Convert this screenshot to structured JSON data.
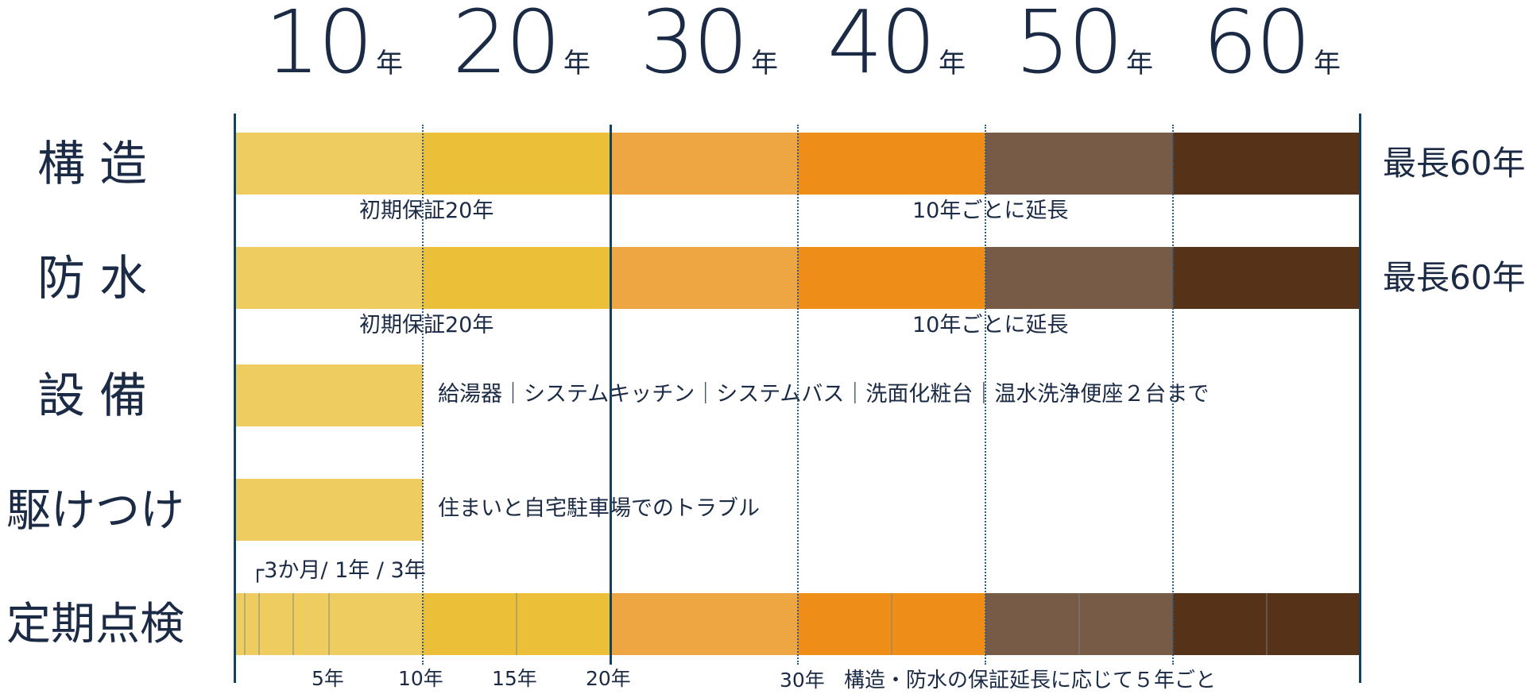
{
  "header": {
    "years": [
      {
        "num": "10",
        "unit": "年"
      },
      {
        "num": "20",
        "unit": "年"
      },
      {
        "num": "30",
        "unit": "年"
      },
      {
        "num": "40",
        "unit": "年"
      },
      {
        "num": "50",
        "unit": "年"
      },
      {
        "num": "60",
        "unit": "年"
      }
    ]
  },
  "rows": {
    "structure": {
      "label": "構造",
      "max": "最長60年",
      "note_initial": "初期保証20年",
      "note_extend": "10年ごとに延長"
    },
    "waterproof": {
      "label": "防水",
      "max": "最長60年",
      "note_initial": "初期保証20年",
      "note_extend": "10年ごとに延長"
    },
    "equipment": {
      "label": "設備",
      "note": "給湯器｜システムキッチン｜システムバス｜洗面化粧台｜温水洗浄便座２台まで"
    },
    "rush": {
      "label": "駆けつけ",
      "note": "住まいと自宅駐車場でのトラブル"
    },
    "inspection": {
      "label": "定期点検",
      "early_note": "┌3か月/ 1年 / 3年",
      "axis": [
        "5年",
        "10年",
        "15年",
        "20年",
        "30年"
      ],
      "note": "構造・防水の保証延長に応じて５年ごと"
    }
  },
  "colors": {
    "seg_0_10": "#eecc5f",
    "seg_10_20": "#ebc038",
    "seg_20_30": "#eda642",
    "seg_30_40": "#ee8e18",
    "seg_40_50": "#775b46",
    "seg_50_60": "#563318",
    "lines": "#124263",
    "text": "#1c2b45"
  }
}
